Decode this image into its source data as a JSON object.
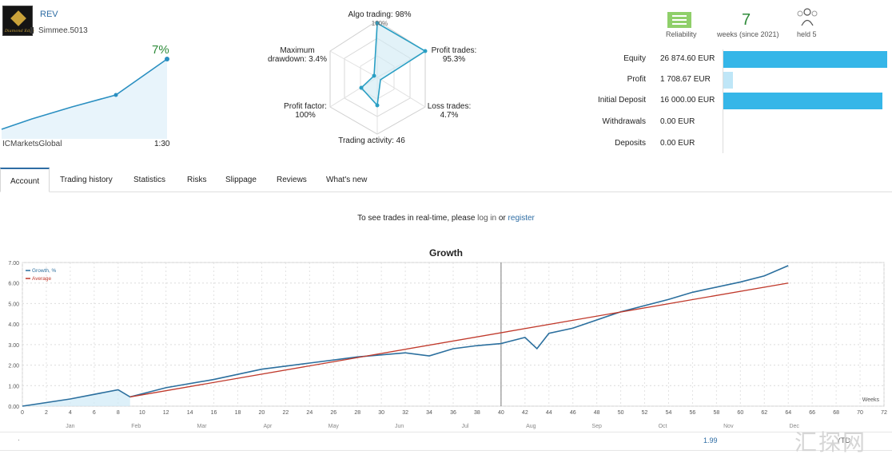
{
  "signal": {
    "name": "REV",
    "broker_line": "Simmee.5013",
    "growth_pct": "7%",
    "mini_left_label": "ICMarketsGlobal",
    "leverage": "1:30"
  },
  "radar": {
    "algo": "Algo trading: 98%",
    "algo_sub": "100%",
    "profit_trades_1": "Profit trades:",
    "profit_trades_2": "95.3%",
    "loss_1": "Loss trades:",
    "loss_2": "4.7%",
    "activity": "Trading activity: 46",
    "profit_factor_1": "Profit factor:",
    "profit_factor_2": "100%",
    "drawdown_1": "Maximum",
    "drawdown_2": "drawdown: 3.4%"
  },
  "stats": {
    "reliability_label": "Reliability",
    "weeks": "7",
    "weeks_label": "weeks (since 2021)",
    "users_label": "held 5"
  },
  "financials": [
    {
      "label": "Equity",
      "value": "26 874.60 EUR",
      "fill": 1.0,
      "color": "#35b6e8"
    },
    {
      "label": "Profit",
      "value": "1 708.67 EUR",
      "fill": 0.06,
      "color": "#bfe6f7"
    },
    {
      "label": "Initial Deposit",
      "value": "16 000.00 EUR",
      "fill": 0.97,
      "color": "#35b6e8"
    },
    {
      "label": "Withdrawals",
      "value": "0.00 EUR",
      "fill": 0,
      "color": "#35b6e8"
    },
    {
      "label": "Deposits",
      "value": "0.00 EUR",
      "fill": 0,
      "color": "#35b6e8"
    }
  ],
  "tabs": [
    "Account",
    "Trading history",
    "Statistics",
    "Risks",
    "Slippage",
    "Reviews",
    "What's new"
  ],
  "notice": {
    "pre": "To see trades in real-time, please",
    "link1": "log in",
    "mid": "or",
    "link2": "register"
  },
  "chart_data": {
    "type": "line",
    "title": "Growth",
    "legend": [
      "Growth, %",
      "Average"
    ],
    "legend_position": "top-left",
    "grid": true,
    "xlabel": "Weeks",
    "xlim": [
      0,
      72
    ],
    "ylim": [
      0,
      7
    ],
    "x_ticks": [
      "0",
      "2",
      "4",
      "6",
      "8",
      "10",
      "12",
      "14",
      "16",
      "18",
      "20",
      "22",
      "24",
      "26",
      "28",
      "30",
      "32",
      "34",
      "36",
      "38",
      "40",
      "42",
      "44",
      "46",
      "48",
      "50",
      "52",
      "54",
      "56",
      "58",
      "60",
      "62",
      "64",
      "66",
      "68",
      "70",
      "72"
    ],
    "y_ticks": [
      "0.00",
      "1.00",
      "2.00",
      "3.00",
      "4.00",
      "5.00",
      "6.00",
      "7.00"
    ],
    "months": [
      "Jan",
      "Feb",
      "Mar",
      "Apr",
      "May",
      "Jun",
      "Jul",
      "Aug",
      "Sep",
      "Oct",
      "Nov",
      "Dec"
    ],
    "series": [
      {
        "name": "Growth, %",
        "x": [
          0,
          4,
          8,
          9,
          12,
          16,
          20,
          24,
          28,
          32,
          34,
          36,
          38,
          40,
          42,
          43,
          44,
          46,
          50,
          54,
          56,
          60,
          62,
          64
        ],
        "y": [
          0,
          0.35,
          0.8,
          0.45,
          0.9,
          1.3,
          1.8,
          2.1,
          2.4,
          2.6,
          2.45,
          2.8,
          2.95,
          3.05,
          3.35,
          2.8,
          3.55,
          3.8,
          4.6,
          5.2,
          5.55,
          6.05,
          6.35,
          6.85
        ]
      },
      {
        "name": "Average",
        "x": [
          9,
          64
        ],
        "y": [
          0.45,
          6.0
        ]
      }
    ],
    "row_value": "1.99",
    "ytd": "YTD"
  }
}
